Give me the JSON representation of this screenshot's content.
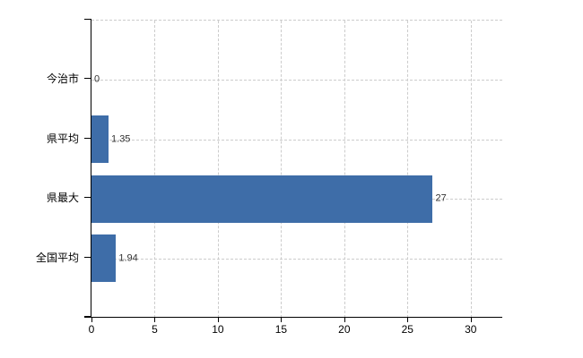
{
  "chart_data": {
    "type": "bar",
    "orientation": "horizontal",
    "title": "",
    "xlabel": "",
    "ylabel": "",
    "categories": [
      "今治市",
      "県平均",
      "県最大",
      "全国平均"
    ],
    "values": [
      0,
      1.35,
      27,
      1.94
    ],
    "value_labels": [
      "0",
      "1.35",
      "27",
      "1.94"
    ],
    "x_ticks": [
      0,
      5,
      10,
      15,
      20,
      25,
      30
    ],
    "x_tick_labels": [
      "0",
      "5",
      "10",
      "15",
      "20",
      "25",
      "30"
    ],
    "xlim": [
      0,
      32.5
    ],
    "grid": "dashed",
    "legend": "none",
    "colors": {
      "bar": "#3e6da8",
      "grid": "#cccccc",
      "axis": "#000000",
      "category_label": "#000000",
      "value_label": "#333333",
      "background": "#ffffff"
    }
  }
}
